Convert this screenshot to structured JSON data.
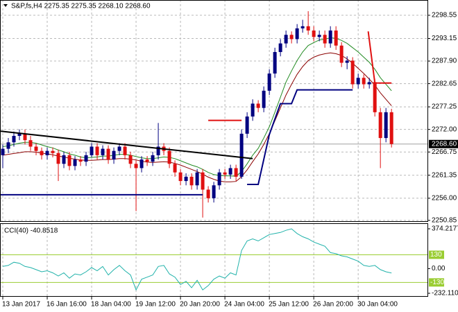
{
  "chart_data": [
    {
      "type": "candlestick",
      "title": "S&P,fs,H4  2275.35 2275.35 2268.10 2268.60",
      "up_color": "#000080",
      "down_color": "#e01010",
      "xlim": [
        -0.5,
        76.6
      ],
      "ylim": [
        2250.5,
        2302.1
      ],
      "yticks": [
        2298.55,
        2293.15,
        {
          "value": 2287.9,
          "label": "2287.90"
        },
        2282.65,
        2277.25,
        {
          "value": 2272,
          "label": "2272.00"
        },
        2266.75,
        2261.35,
        {
          "value": 2256,
          "label": "2256.00"
        },
        2250.85
      ],
      "grid": true,
      "last_price": {
        "value": 2268.6,
        "label": "2268.60"
      },
      "open": [
        2266,
        2267.5,
        2269,
        2270.5,
        2271,
        2269.5,
        2268,
        2267,
        2266,
        2267,
        2266.5,
        2264,
        2266,
        2263.5,
        2265,
        2264.5,
        2266,
        2268,
        2266,
        2267.5,
        2265,
        2267,
        2268,
        2266,
        2264,
        2263,
        2265,
        2264.5,
        2266,
        2268,
        2267,
        2264,
        2262,
        2260,
        2261,
        2259,
        2262,
        2258,
        2256,
        2259,
        2262,
        2261.5,
        2263,
        2261,
        2271,
        2275,
        2278,
        2277,
        2281,
        2285,
        2290,
        2292,
        2294,
        2293,
        2295.5,
        2296,
        2295,
        2293.5,
        2294,
        2292,
        2295,
        2291.5,
        2287.5,
        2288,
        2282.5,
        2284,
        2282.5,
        2283,
        2276,
        2270,
        2276
      ],
      "high": [
        2268.5,
        2270,
        2271.5,
        2272,
        2272,
        2270.5,
        2268.8,
        2267.8,
        2267.8,
        2267.8,
        2267.3,
        2266.8,
        2266.8,
        2265.8,
        2265.8,
        2266.8,
        2268.8,
        2268.8,
        2268.3,
        2268.3,
        2267.8,
        2268.8,
        2268.8,
        2266.8,
        2264.8,
        2265.8,
        2265.8,
        2266.8,
        2273.5,
        2268.8,
        2267.8,
        2264.8,
        2262.8,
        2261.8,
        2261.8,
        2262.8,
        2262.8,
        2258.8,
        2259.8,
        2262.8,
        2262.8,
        2263.8,
        2263.8,
        2272,
        2276,
        2279,
        2278.8,
        2282,
        2286,
        2291,
        2293,
        2295,
        2294.8,
        2296.5,
        2297.5,
        2299.5,
        2296,
        2295,
        2295,
        2296,
        2296,
        2292.3,
        2289,
        2288.8,
        2285,
        2284.8,
        2284,
        2283.8,
        2277,
        2277,
        2276.8
      ],
      "low": [
        2263,
        2266.5,
        2268,
        2269.5,
        2268.5,
        2267,
        2266,
        2265,
        2265,
        2265.5,
        2260,
        2263,
        2262.5,
        2262.5,
        2263.5,
        2263.5,
        2265.5,
        2265,
        2265,
        2264,
        2264,
        2266,
        2265,
        2263,
        2253,
        2262,
        2263.5,
        2263.5,
        2265,
        2266,
        2263,
        2261,
        2259,
        2259,
        2258,
        2258,
        2251.5,
        2255,
        2255,
        2258,
        2260.5,
        2260.5,
        2260,
        2260.5,
        2270,
        2274,
        2276,
        2276,
        2280,
        2284,
        2289,
        2291,
        2292,
        2292,
        2294.5,
        2294,
        2292.5,
        2292.5,
        2291,
        2291,
        2290.5,
        2286.5,
        2286,
        2281.5,
        2281.5,
        2281.5,
        2281.5,
        2275,
        2263,
        2269,
        2267.8
      ],
      "close": [
        2267.5,
        2269,
        2270.5,
        2271,
        2269.5,
        2268,
        2267,
        2266,
        2267,
        2266.5,
        2264,
        2266,
        2263.5,
        2265,
        2264.5,
        2266,
        2268,
        2266,
        2267.5,
        2265,
        2267,
        2268,
        2266,
        2264,
        2263,
        2265,
        2264.5,
        2266,
        2268,
        2267,
        2264,
        2262,
        2260,
        2261,
        2259,
        2262,
        2258,
        2256,
        2259,
        2262,
        2261.5,
        2263,
        2261,
        2271,
        2275,
        2278,
        2277,
        2281,
        2285,
        2290,
        2292,
        2294,
        2293,
        2295.5,
        2296,
        2295,
        2293.5,
        2294,
        2292,
        2295,
        2291.5,
        2287.5,
        2288,
        2282.5,
        2284,
        2282.5,
        2283,
        2276,
        2270,
        2276,
        2268.6
      ],
      "series": [
        {
          "color": "#228b22",
          "values": [
            2268,
            2268.2,
            2268.5,
            2268.8,
            2269,
            2269,
            2268.8,
            2268.4,
            2268,
            2267.7,
            2267.2,
            2266.8,
            2266.3,
            2266,
            2265.6,
            2265.4,
            2265.5,
            2265.6,
            2265.8,
            2265.8,
            2266,
            2266.2,
            2266.2,
            2266,
            2265.7,
            2265.4,
            2265.2,
            2265.2,
            2265.4,
            2265.6,
            2265.5,
            2265.2,
            2264.7,
            2264.2,
            2263.7,
            2263.3,
            2262.7,
            2262,
            2261.5,
            2261.3,
            2261.2,
            2261.2,
            2261.1,
            2262.2,
            2264,
            2266,
            2267.6,
            2270,
            2272.6,
            2276,
            2279.5,
            2283,
            2285.6,
            2288,
            2290,
            2291.5,
            2292.2,
            2292.8,
            2293,
            2293.3,
            2293.2,
            2292.7,
            2292,
            2291,
            2290,
            2288.8,
            2287.6,
            2286,
            2284,
            2282.5,
            2281
          ]
        },
        {
          "color": "#8b0000",
          "values": [
            2266,
            2266.2,
            2266.4,
            2266.6,
            2266.8,
            2266.8,
            2266.7,
            2266.5,
            2266.3,
            2266.1,
            2265.8,
            2265.6,
            2265.3,
            2265.1,
            2264.9,
            2264.8,
            2264.8,
            2264.9,
            2265,
            2265,
            2265.1,
            2265.2,
            2265.2,
            2265.1,
            2264.9,
            2264.6,
            2264.4,
            2264.3,
            2264.4,
            2264.5,
            2264.4,
            2264.1,
            2263.7,
            2263.2,
            2262.7,
            2262.2,
            2261.6,
            2260.9,
            2260.4,
            2260,
            2259.8,
            2259.8,
            2259.9,
            2261,
            2262.6,
            2264.5,
            2266.3,
            2268.5,
            2271,
            2274,
            2277,
            2280,
            2282.5,
            2284.8,
            2286.6,
            2288,
            2288.8,
            2289.3,
            2289.6,
            2289.8,
            2289.6,
            2289.2,
            2288.4,
            2287.4,
            2286.2,
            2285,
            2283.7,
            2282.3,
            2280.5,
            2279,
            2277.5
          ]
        }
      ],
      "lines": [
        {
          "color": "#000000",
          "width": 2,
          "x": [
            -0.5,
            45
          ],
          "y": [
            2271.6,
            2265.2
          ]
        },
        {
          "color": "#000080",
          "width": 2,
          "x": [
            -0.5,
            36
          ],
          "y": [
            2256.8,
            2256.8
          ]
        },
        {
          "color": "#e01010",
          "width": 2,
          "x": [
            37,
            43
          ],
          "y": [
            2274.1,
            2274.1
          ]
        },
        {
          "color": "#000080",
          "width": 2,
          "x": [
            44,
            46,
            48,
            50,
            52,
            53,
            63
          ],
          "y": [
            2259.2,
            2259.2,
            2270.8,
            2278,
            2278,
            2281.2,
            2281.2
          ]
        },
        {
          "color": "#e01010",
          "width": 2,
          "x": [
            65.8,
            67,
            70
          ],
          "y": [
            2294.8,
            2282.8,
            2282.8
          ]
        }
      ]
    },
    {
      "type": "line",
      "title": "CCI(40) -40.8518",
      "xlim": [
        -0.5,
        76.6
      ],
      "ylim": [
        -264.7,
        426.4
      ],
      "yticks": [
        374.2177,
        {
          "value": 0,
          "label": "0.00"
        },
        -232.1105
      ],
      "level_ticks": [
        130,
        -130
      ],
      "level_color": "#9acd32",
      "xticks": [
        {
          "value": 0,
          "label": "13 Jan 2017"
        },
        {
          "value": 8,
          "label": "16 Jan 16:00"
        },
        {
          "value": 16,
          "label": "18 Jan 04:00"
        },
        {
          "value": 24,
          "label": "19 Jan 12:00"
        },
        {
          "value": 32,
          "label": "20 Jan 20:00"
        },
        {
          "value": 40,
          "label": "24 Jan 04:00"
        },
        {
          "value": 48,
          "label": "25 Jan 12:00"
        },
        {
          "value": 56,
          "label": "26 Jan 20:00"
        },
        {
          "value": 64,
          "label": "30 Jan 04:00"
        }
      ],
      "series": [
        {
          "color": "#20b2aa",
          "values": [
            20,
            30,
            60,
            50,
            20,
            10,
            -10,
            -30,
            -20,
            -40,
            -70,
            -40,
            -90,
            -50,
            -60,
            -30,
            10,
            -20,
            20,
            -60,
            -10,
            30,
            -20,
            -60,
            -200,
            -100,
            -80,
            -60,
            20,
            30,
            -50,
            -80,
            -150,
            -120,
            -180,
            -110,
            -200,
            -160,
            -100,
            -70,
            -90,
            -40,
            -60,
            170,
            260,
            280,
            260,
            290,
            320,
            330,
            340,
            360,
            374.2,
            330,
            300,
            280,
            250,
            230,
            210,
            150,
            140,
            120,
            110,
            90,
            70,
            30,
            20,
            30,
            -10,
            -30,
            -40.8518
          ]
        }
      ]
    }
  ]
}
